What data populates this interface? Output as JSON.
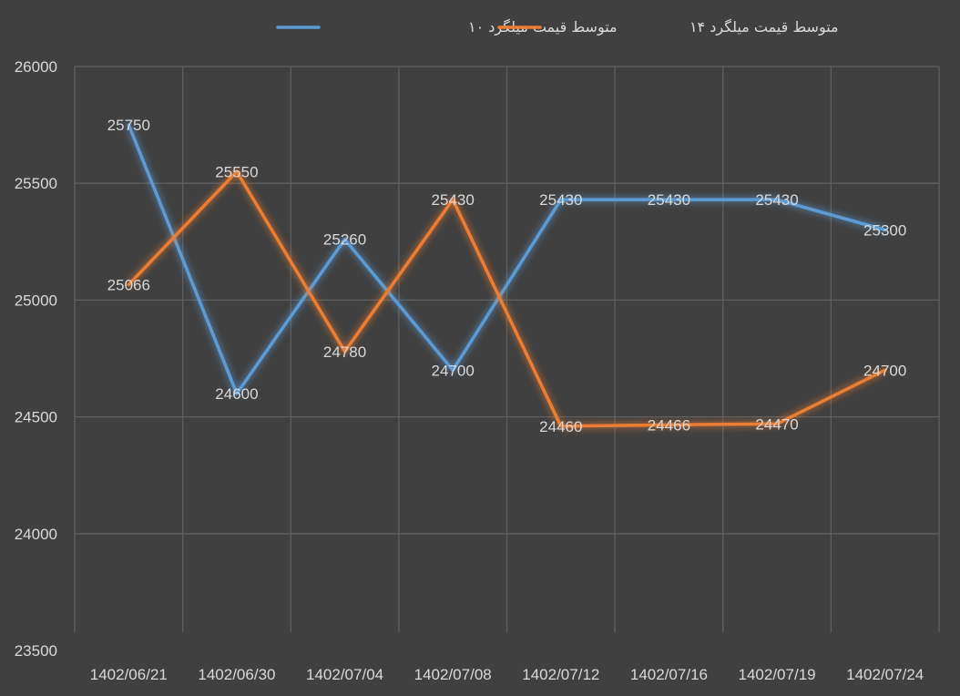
{
  "chart_data": {
    "type": "line",
    "title": "",
    "xlabel": "",
    "ylabel": "",
    "categories": [
      "1402/06/21",
      "1402/06/30",
      "1402/07/04",
      "1402/07/08",
      "1402/07/12",
      "1402/07/16",
      "1402/07/19",
      "1402/07/24"
    ],
    "ylim": [
      23500,
      26000
    ],
    "yticks": [
      23500,
      24000,
      24500,
      25000,
      25500,
      26000
    ],
    "ytick_labels": [
      "23500",
      "24000",
      "24500",
      "25000",
      "25500",
      "26000"
    ],
    "grid": true,
    "legend_position": "top",
    "series": [
      {
        "name": "متوسط قیمت میلگرد ۱۰",
        "color": "#5b9bd5",
        "values": [
          25750,
          24600,
          25260,
          24700,
          25430,
          25430,
          25430,
          25300
        ],
        "labels": [
          "25750",
          "24600",
          "25260",
          "24700",
          "25430",
          "25430",
          "25430",
          "25300"
        ]
      },
      {
        "name": "متوسط قیمت میلگرد ۱۴",
        "color": "#ed7d31",
        "values": [
          25066,
          25550,
          24780,
          25430,
          24460,
          24466,
          24470,
          24700
        ],
        "labels": [
          "25066",
          "25550",
          "24780",
          "25430",
          "24460",
          "24466",
          "24470",
          "24700"
        ]
      }
    ]
  }
}
